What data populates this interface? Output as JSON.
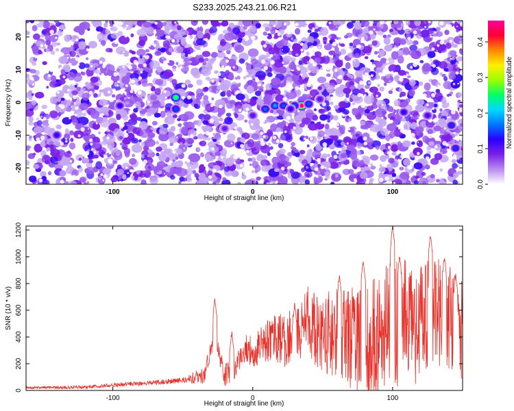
{
  "title": "S233.2025.243.21.06.R21",
  "chart_data": [
    {
      "type": "heatmap",
      "title": "S233.2025.243.21.06.R21",
      "xlabel": "Height of straight line (km)",
      "ylabel": "Frequency (Hz)",
      "xlim": [
        -162,
        150
      ],
      "ylim": [
        -25,
        25
      ],
      "xticks": [
        -100,
        0,
        100
      ],
      "yticks": [
        -20,
        -10,
        0,
        10,
        20
      ],
      "colorbar": {
        "label": "Normalized spectral amplitude",
        "range": [
          0,
          0.46
        ],
        "ticks": [
          0.0,
          0.1,
          0.2,
          0.3,
          0.4
        ],
        "colormap": [
          "#ffffff",
          "#b98cf0",
          "#7b22e8",
          "#2b00ff",
          "#0077ff",
          "#00d8ff",
          "#00ff66",
          "#9cff00",
          "#ffee00",
          "#ff8800",
          "#ff0033",
          "#ff0099"
        ]
      },
      "background_level": 0.03,
      "peaks": [
        {
          "x": 35,
          "y": -1,
          "value": 0.45
        },
        {
          "x": 30,
          "y": -1,
          "value": 0.15
        },
        {
          "x": 40,
          "y": -0.5,
          "value": 0.15
        },
        {
          "x": 16,
          "y": -1,
          "value": 0.18
        },
        {
          "x": 22,
          "y": -1,
          "value": 0.15
        },
        {
          "x": 9,
          "y": -2,
          "value": 0.16
        },
        {
          "x": 27,
          "y": -2,
          "value": 0.12
        },
        {
          "x": 48,
          "y": 1,
          "value": 0.1
        },
        {
          "x": -55,
          "y": 1.5,
          "value": 0.26
        },
        {
          "x": -55,
          "y": -2,
          "value": 0.15
        },
        {
          "x": -95,
          "y": -1,
          "value": 0.12
        },
        {
          "x": -140,
          "y": -10,
          "value": 0.12
        },
        {
          "x": 142,
          "y": -7,
          "value": 0.14
        },
        {
          "x": 145,
          "y": -14,
          "value": 0.14
        },
        {
          "x": 108,
          "y": -3,
          "value": 0.12
        },
        {
          "x": 125,
          "y": -4,
          "value": 0.11
        },
        {
          "x": 0,
          "y": -4,
          "value": 0.1
        },
        {
          "x": -20,
          "y": -8,
          "value": 0.09
        }
      ]
    },
    {
      "type": "line",
      "xlabel": "Height of straight line (km)",
      "ylabel": "SNR (10 * v/v)",
      "xlim": [
        -162,
        150
      ],
      "ylim": [
        0,
        1230
      ],
      "xticks": [
        -100,
        0,
        100
      ],
      "yticks": [
        0,
        200,
        400,
        600,
        800,
        1000,
        1200
      ],
      "color": "#e8312a",
      "profile": {
        "x": [
          -162,
          -120,
          -90,
          -70,
          -50,
          -35,
          -30,
          -27,
          -24,
          -20,
          -15,
          -10,
          -5,
          0,
          5,
          10,
          15,
          20,
          25,
          30,
          35,
          40,
          45,
          50,
          60,
          70,
          80,
          90,
          100,
          110,
          120,
          130,
          140,
          150
        ],
        "y": [
          20,
          25,
          45,
          60,
          75,
          110,
          300,
          500,
          280,
          120,
          160,
          220,
          320,
          280,
          330,
          360,
          410,
          380,
          360,
          440,
          470,
          520,
          470,
          440,
          420,
          390,
          380,
          400,
          500,
          520,
          500,
          560,
          520,
          480
        ]
      },
      "noise_amplitude": {
        "x": [
          -162,
          -50,
          -35,
          0,
          30,
          60,
          100,
          150
        ],
        "y": [
          8,
          20,
          70,
          120,
          230,
          340,
          500,
          400
        ]
      },
      "highlights": [
        {
          "x": -27,
          "y": 690
        },
        {
          "x": -15,
          "y": 430
        },
        {
          "x": 30,
          "y": 650
        },
        {
          "x": 62,
          "y": 870
        },
        {
          "x": 79,
          "y": 980
        },
        {
          "x": 100,
          "y": 1230
        },
        {
          "x": 105,
          "y": 1000
        },
        {
          "x": 127,
          "y": 1170
        },
        {
          "x": 137,
          "y": 1000
        },
        {
          "x": 145,
          "y": 870
        }
      ]
    }
  ]
}
